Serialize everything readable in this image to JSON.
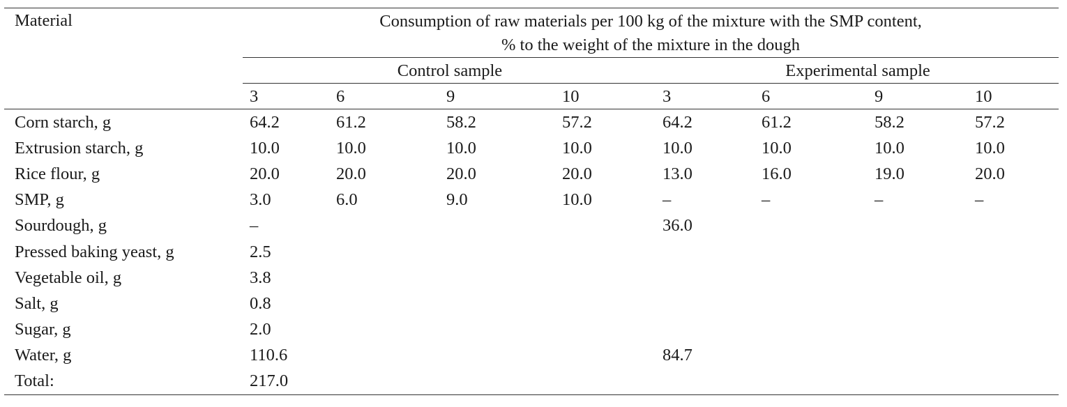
{
  "table": {
    "header": {
      "material_label": "Material",
      "caption_line1": "Consumption of raw materials per 100 kg of the mixture with the SMP content,",
      "caption_line2": "% to the weight of the mixture in the dough",
      "groups": [
        "Control sample",
        "Experimental sample"
      ],
      "smp_levels": [
        "3",
        "6",
        "9",
        "10",
        "3",
        "6",
        "9",
        "10"
      ]
    },
    "rows": [
      {
        "label": "Corn starch, g",
        "cells": [
          "64.2",
          "61.2",
          "58.2",
          "57.2",
          "64.2",
          "61.2",
          "58.2",
          "57.2"
        ]
      },
      {
        "label": "Extrusion starch, g",
        "cells": [
          "10.0",
          "10.0",
          "10.0",
          "10.0",
          "10.0",
          "10.0",
          "10.0",
          "10.0"
        ]
      },
      {
        "label": "Rice flour, g",
        "cells": [
          "20.0",
          "20.0",
          "20.0",
          "20.0",
          "13.0",
          "16.0",
          "19.0",
          "20.0"
        ]
      },
      {
        "label": "SMP, g",
        "cells": [
          "3.0",
          "6.0",
          "9.0",
          "10.0",
          "–",
          "–",
          "–",
          "–"
        ]
      },
      {
        "label": "Sourdough, g",
        "cells": [
          "–",
          "",
          "",
          "",
          "36.0",
          "",
          "",
          ""
        ]
      },
      {
        "label": "Pressed baking yeast, g",
        "cells": [
          "2.5",
          "",
          "",
          "",
          "",
          "",
          "",
          ""
        ]
      },
      {
        "label": "Vegetable oil, g",
        "cells": [
          "3.8",
          "",
          "",
          "",
          "",
          "",
          "",
          ""
        ]
      },
      {
        "label": "Salt, g",
        "cells": [
          "0.8",
          "",
          "",
          "",
          "",
          "",
          "",
          ""
        ]
      },
      {
        "label": "Sugar, g",
        "cells": [
          "2.0",
          "",
          "",
          "",
          "",
          "",
          "",
          ""
        ]
      },
      {
        "label": "Water, g",
        "cells": [
          "110.6",
          "",
          "",
          "",
          "84.7",
          "",
          "",
          ""
        ]
      },
      {
        "label": "Total:",
        "cells": [
          "217.0",
          "",
          "",
          "",
          "",
          "",
          "",
          ""
        ]
      }
    ]
  }
}
